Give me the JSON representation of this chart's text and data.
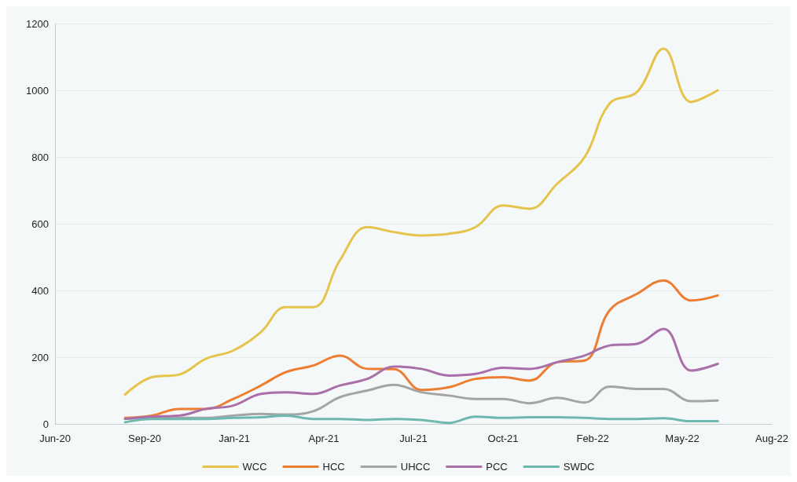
{
  "chart_data": {
    "type": "line",
    "x": [
      "2020-08-31",
      "2020-09-30",
      "2020-10-31",
      "2020-11-30",
      "2020-12-31",
      "2021-01-31",
      "2021-02-28",
      "2021-03-31",
      "2021-04-30",
      "2021-05-31",
      "2021-06-30",
      "2021-07-31",
      "2021-08-31",
      "2021-09-30",
      "2021-10-31",
      "2021-11-30",
      "2021-12-31",
      "2022-01-31",
      "2022-02-28",
      "2022-03-31",
      "2022-04-30",
      "2022-05-31",
      "2022-06-30"
    ],
    "series": [
      {
        "name": "WCC",
        "color": "#e6c34a",
        "values": [
          88,
          140,
          148,
          195,
          220,
          275,
          350,
          350,
          490,
          590,
          575,
          565,
          570,
          590,
          655,
          645,
          720,
          800,
          960,
          995,
          1125,
          965,
          1000
        ]
      },
      {
        "name": "HCC",
        "color": "#ed7d31",
        "values": [
          18,
          25,
          45,
          45,
          75,
          115,
          155,
          175,
          205,
          165,
          164,
          102,
          110,
          135,
          140,
          130,
          185,
          190,
          340,
          390,
          430,
          370,
          385
        ]
      },
      {
        "name": "UHCC",
        "color": "#a5a5a5",
        "values": [
          15,
          18,
          18,
          18,
          25,
          30,
          28,
          38,
          80,
          100,
          117,
          95,
          85,
          75,
          75,
          62,
          78,
          64,
          112,
          105,
          105,
          68,
          70
        ]
      },
      {
        "name": "PCC",
        "color": "#a96fa8",
        "values": [
          15,
          22,
          25,
          45,
          55,
          90,
          95,
          90,
          115,
          135,
          172,
          165,
          145,
          150,
          168,
          165,
          185,
          205,
          235,
          240,
          285,
          160,
          180
        ]
      },
      {
        "name": "SWDC",
        "color": "#6fb8b0",
        "values": [
          5,
          15,
          15,
          15,
          18,
          20,
          25,
          15,
          15,
          12,
          15,
          12,
          3,
          22,
          18,
          20,
          20,
          18,
          15,
          15,
          17,
          8,
          8
        ]
      }
    ],
    "xlim": [
      "2020-06-13",
      "2022-08-30"
    ],
    "xticks": [
      {
        "value": "2020-06-13",
        "label": "Jun-20"
      },
      {
        "value": "2020-09-22",
        "label": "Sep-20"
      },
      {
        "value": "2021-01-01",
        "label": "Jan-21"
      },
      {
        "value": "2021-04-12",
        "label": "Apr-21"
      },
      {
        "value": "2021-07-22",
        "label": "Jul-21"
      },
      {
        "value": "2021-10-31",
        "label": "Oct-21"
      },
      {
        "value": "2022-02-09",
        "label": "Feb-22"
      },
      {
        "value": "2022-05-21",
        "label": "May-22"
      },
      {
        "value": "2022-08-30",
        "label": "Aug-22"
      }
    ],
    "ylim": [
      0,
      1200
    ],
    "yticks": [
      0,
      200,
      400,
      600,
      800,
      1000,
      1200
    ],
    "grid": "y",
    "legend": "bottom",
    "marker": "none",
    "line_style": "solid"
  }
}
